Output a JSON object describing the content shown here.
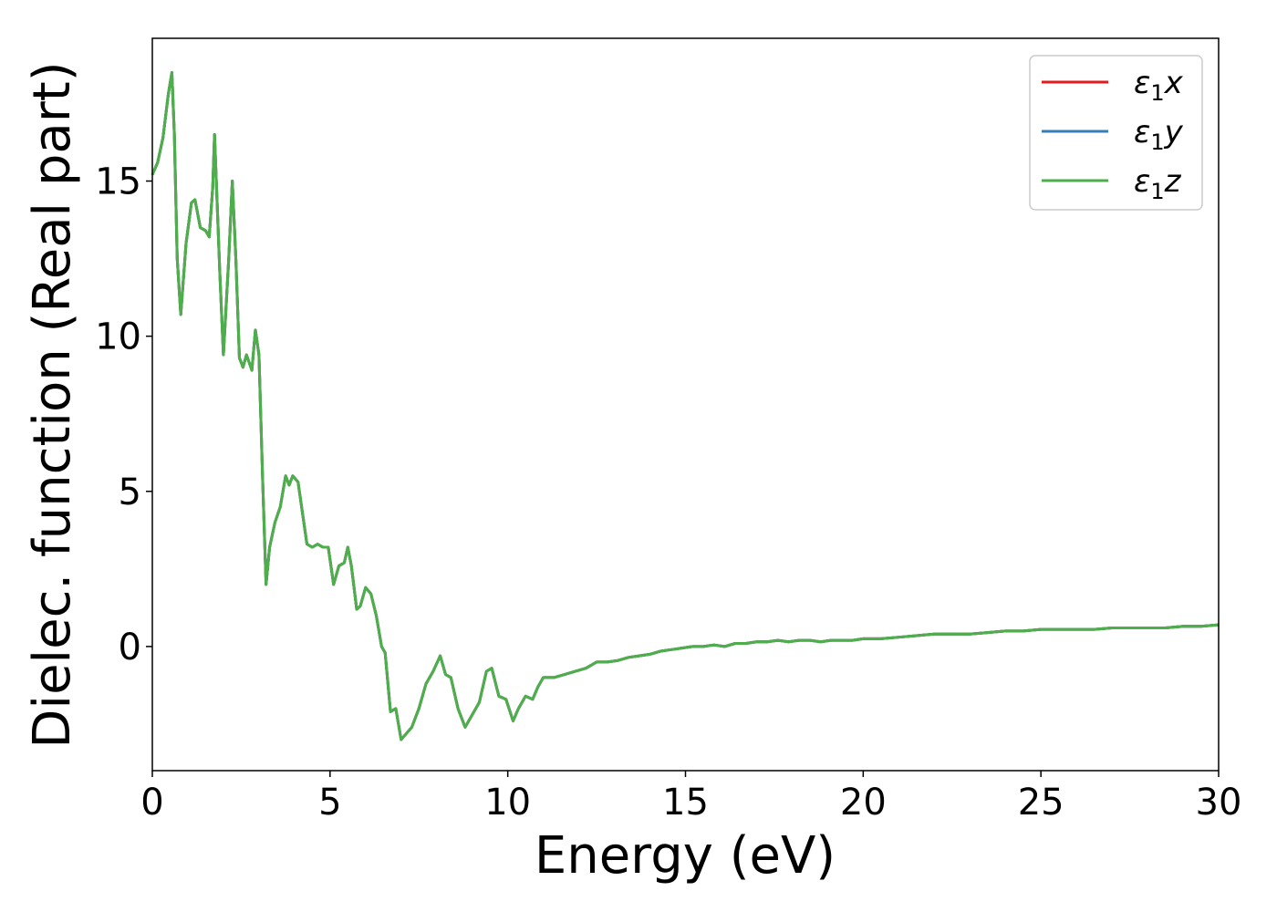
{
  "chart_data": {
    "type": "line",
    "title": "",
    "xlabel": "Energy (eV)",
    "ylabel": "Dielec. function (Real part)",
    "xlim": [
      0,
      30
    ],
    "ylim": [
      -4.0,
      19.6
    ],
    "xticks": [
      0,
      5,
      10,
      15,
      20,
      25,
      30
    ],
    "yticks": [
      0,
      5,
      10,
      15
    ],
    "xtick_labels": [
      "0",
      "5",
      "10",
      "15",
      "20",
      "25",
      "30"
    ],
    "ytick_labels": [
      "0",
      "5",
      "10",
      "15"
    ],
    "grid": false,
    "legend_position": "top-right",
    "series": [
      {
        "name": "ε₁x",
        "legend_symbol": "ε",
        "legend_sub": "1",
        "legend_var": "x",
        "color": "#e41a1c",
        "x": [
          0,
          0.15,
          0.3,
          0.45,
          0.55,
          0.62,
          0.7,
          0.8,
          0.95,
          1.1,
          1.2,
          1.35,
          1.5,
          1.6,
          1.7,
          1.75,
          1.8,
          1.9,
          2.0,
          2.15,
          2.25,
          2.35,
          2.45,
          2.55,
          2.65,
          2.8,
          2.9,
          3.0,
          3.1,
          3.2,
          3.3,
          3.45,
          3.6,
          3.75,
          3.85,
          3.95,
          4.1,
          4.2,
          4.35,
          4.5,
          4.65,
          4.8,
          4.95,
          5.1,
          5.25,
          5.4,
          5.5,
          5.6,
          5.75,
          5.85,
          6.0,
          6.15,
          6.3,
          6.45,
          6.55,
          6.7,
          6.85,
          7.0,
          7.15,
          7.3,
          7.5,
          7.7,
          7.9,
          8.1,
          8.25,
          8.4,
          8.6,
          8.8,
          9.0,
          9.2,
          9.4,
          9.55,
          9.75,
          9.95,
          10.15,
          10.3,
          10.5,
          10.7,
          10.85,
          11.0,
          11.3,
          11.6,
          11.9,
          12.2,
          12.5,
          12.8,
          13.1,
          13.4,
          13.7,
          14.0,
          14.3,
          14.6,
          14.9,
          15.2,
          15.5,
          15.8,
          16.1,
          16.4,
          16.7,
          17.0,
          17.3,
          17.6,
          17.9,
          18.2,
          18.5,
          18.8,
          19.1,
          19.4,
          19.7,
          20.0,
          20.5,
          21.0,
          21.5,
          22.0,
          22.5,
          23.0,
          23.5,
          24.0,
          24.5,
          25.0,
          25.5,
          26.0,
          26.5,
          27.0,
          27.5,
          28.0,
          28.5,
          29.0,
          29.5,
          30.0
        ],
        "y": [
          15.2,
          15.6,
          16.4,
          17.8,
          18.5,
          16.5,
          12.5,
          10.7,
          13.0,
          14.3,
          14.4,
          13.5,
          13.4,
          13.2,
          14.8,
          16.5,
          15.0,
          12.0,
          9.4,
          12.5,
          15.0,
          12.5,
          9.3,
          9.0,
          9.4,
          8.9,
          10.2,
          9.4,
          5.5,
          2.0,
          3.2,
          4.0,
          4.5,
          5.5,
          5.2,
          5.5,
          5.3,
          4.5,
          3.3,
          3.2,
          3.3,
          3.2,
          3.2,
          2.0,
          2.6,
          2.7,
          3.2,
          2.6,
          1.2,
          1.3,
          1.9,
          1.7,
          1.0,
          0.0,
          -0.2,
          -2.1,
          -2.0,
          -3.0,
          -2.8,
          -2.6,
          -2.0,
          -1.2,
          -0.8,
          -0.3,
          -0.9,
          -1.0,
          -2.0,
          -2.6,
          -2.2,
          -1.8,
          -0.8,
          -0.7,
          -1.6,
          -1.7,
          -2.4,
          -2.0,
          -1.6,
          -1.7,
          -1.3,
          -1.0,
          -1.0,
          -0.9,
          -0.8,
          -0.7,
          -0.5,
          -0.5,
          -0.45,
          -0.35,
          -0.3,
          -0.25,
          -0.15,
          -0.1,
          -0.05,
          0.0,
          0.0,
          0.05,
          0.0,
          0.1,
          0.1,
          0.15,
          0.15,
          0.2,
          0.15,
          0.2,
          0.2,
          0.15,
          0.2,
          0.2,
          0.2,
          0.25,
          0.25,
          0.3,
          0.35,
          0.4,
          0.4,
          0.4,
          0.45,
          0.5,
          0.5,
          0.55,
          0.55,
          0.55,
          0.55,
          0.6,
          0.6,
          0.6,
          0.6,
          0.65,
          0.65,
          0.7
        ]
      },
      {
        "name": "ε₁y",
        "legend_symbol": "ε",
        "legend_sub": "1",
        "legend_var": "y",
        "color": "#377eb8",
        "x": [
          0,
          0.15,
          0.3,
          0.45,
          0.55,
          0.62,
          0.7,
          0.8,
          0.95,
          1.1,
          1.2,
          1.35,
          1.5,
          1.6,
          1.7,
          1.75,
          1.8,
          1.9,
          2.0,
          2.15,
          2.25,
          2.35,
          2.45,
          2.55,
          2.65,
          2.8,
          2.9,
          3.0,
          3.1,
          3.2,
          3.3,
          3.45,
          3.6,
          3.75,
          3.85,
          3.95,
          4.1,
          4.2,
          4.35,
          4.5,
          4.65,
          4.8,
          4.95,
          5.1,
          5.25,
          5.4,
          5.5,
          5.6,
          5.75,
          5.85,
          6.0,
          6.15,
          6.3,
          6.45,
          6.55,
          6.7,
          6.85,
          7.0,
          7.15,
          7.3,
          7.5,
          7.7,
          7.9,
          8.1,
          8.25,
          8.4,
          8.6,
          8.8,
          9.0,
          9.2,
          9.4,
          9.55,
          9.75,
          9.95,
          10.15,
          10.3,
          10.5,
          10.7,
          10.85,
          11.0,
          11.3,
          11.6,
          11.9,
          12.2,
          12.5,
          12.8,
          13.1,
          13.4,
          13.7,
          14.0,
          14.3,
          14.6,
          14.9,
          15.2,
          15.5,
          15.8,
          16.1,
          16.4,
          16.7,
          17.0,
          17.3,
          17.6,
          17.9,
          18.2,
          18.5,
          18.8,
          19.1,
          19.4,
          19.7,
          20.0,
          20.5,
          21.0,
          21.5,
          22.0,
          22.5,
          23.0,
          23.5,
          24.0,
          24.5,
          25.0,
          25.5,
          26.0,
          26.5,
          27.0,
          27.5,
          28.0,
          28.5,
          29.0,
          29.5,
          30.0
        ],
        "y": [
          15.2,
          15.6,
          16.4,
          17.8,
          18.5,
          16.5,
          12.5,
          10.7,
          13.0,
          14.3,
          14.4,
          13.5,
          13.4,
          13.2,
          14.8,
          16.5,
          15.0,
          12.0,
          9.4,
          12.5,
          15.0,
          12.5,
          9.3,
          9.0,
          9.4,
          8.9,
          10.2,
          9.4,
          5.5,
          2.0,
          3.2,
          4.0,
          4.5,
          5.5,
          5.2,
          5.5,
          5.3,
          4.5,
          3.3,
          3.2,
          3.3,
          3.2,
          3.2,
          2.0,
          2.6,
          2.7,
          3.2,
          2.6,
          1.2,
          1.3,
          1.9,
          1.7,
          1.0,
          0.0,
          -0.2,
          -2.1,
          -2.0,
          -3.0,
          -2.8,
          -2.6,
          -2.0,
          -1.2,
          -0.8,
          -0.3,
          -0.9,
          -1.0,
          -2.0,
          -2.6,
          -2.2,
          -1.8,
          -0.8,
          -0.7,
          -1.6,
          -1.7,
          -2.4,
          -2.0,
          -1.6,
          -1.7,
          -1.3,
          -1.0,
          -1.0,
          -0.9,
          -0.8,
          -0.7,
          -0.5,
          -0.5,
          -0.45,
          -0.35,
          -0.3,
          -0.25,
          -0.15,
          -0.1,
          -0.05,
          0.0,
          0.0,
          0.05,
          0.0,
          0.1,
          0.1,
          0.15,
          0.15,
          0.2,
          0.15,
          0.2,
          0.2,
          0.15,
          0.2,
          0.2,
          0.2,
          0.25,
          0.25,
          0.3,
          0.35,
          0.4,
          0.4,
          0.4,
          0.45,
          0.5,
          0.5,
          0.55,
          0.55,
          0.55,
          0.55,
          0.6,
          0.6,
          0.6,
          0.6,
          0.65,
          0.65,
          0.7
        ]
      },
      {
        "name": "ε₁z",
        "legend_symbol": "ε",
        "legend_sub": "1",
        "legend_var": "z",
        "color": "#4daf4a",
        "x": [
          0,
          0.15,
          0.3,
          0.45,
          0.55,
          0.62,
          0.7,
          0.8,
          0.95,
          1.1,
          1.2,
          1.35,
          1.5,
          1.6,
          1.7,
          1.75,
          1.8,
          1.9,
          2.0,
          2.15,
          2.25,
          2.35,
          2.45,
          2.55,
          2.65,
          2.8,
          2.9,
          3.0,
          3.1,
          3.2,
          3.3,
          3.45,
          3.6,
          3.75,
          3.85,
          3.95,
          4.1,
          4.2,
          4.35,
          4.5,
          4.65,
          4.8,
          4.95,
          5.1,
          5.25,
          5.4,
          5.5,
          5.6,
          5.75,
          5.85,
          6.0,
          6.15,
          6.3,
          6.45,
          6.55,
          6.7,
          6.85,
          7.0,
          7.15,
          7.3,
          7.5,
          7.7,
          7.9,
          8.1,
          8.25,
          8.4,
          8.6,
          8.8,
          9.0,
          9.2,
          9.4,
          9.55,
          9.75,
          9.95,
          10.15,
          10.3,
          10.5,
          10.7,
          10.85,
          11.0,
          11.3,
          11.6,
          11.9,
          12.2,
          12.5,
          12.8,
          13.1,
          13.4,
          13.7,
          14.0,
          14.3,
          14.6,
          14.9,
          15.2,
          15.5,
          15.8,
          16.1,
          16.4,
          16.7,
          17.0,
          17.3,
          17.6,
          17.9,
          18.2,
          18.5,
          18.8,
          19.1,
          19.4,
          19.7,
          20.0,
          20.5,
          21.0,
          21.5,
          22.0,
          22.5,
          23.0,
          23.5,
          24.0,
          24.5,
          25.0,
          25.5,
          26.0,
          26.5,
          27.0,
          27.5,
          28.0,
          28.5,
          29.0,
          29.5,
          30.0
        ],
        "y": [
          15.2,
          15.6,
          16.4,
          17.8,
          18.5,
          16.5,
          12.5,
          10.7,
          13.0,
          14.3,
          14.4,
          13.5,
          13.4,
          13.2,
          14.8,
          16.5,
          15.0,
          12.0,
          9.4,
          12.5,
          15.0,
          12.5,
          9.3,
          9.0,
          9.4,
          8.9,
          10.2,
          9.4,
          5.5,
          2.0,
          3.2,
          4.0,
          4.5,
          5.5,
          5.2,
          5.5,
          5.3,
          4.5,
          3.3,
          3.2,
          3.3,
          3.2,
          3.2,
          2.0,
          2.6,
          2.7,
          3.2,
          2.6,
          1.2,
          1.3,
          1.9,
          1.7,
          1.0,
          0.0,
          -0.2,
          -2.1,
          -2.0,
          -3.0,
          -2.8,
          -2.6,
          -2.0,
          -1.2,
          -0.8,
          -0.3,
          -0.9,
          -1.0,
          -2.0,
          -2.6,
          -2.2,
          -1.8,
          -0.8,
          -0.7,
          -1.6,
          -1.7,
          -2.4,
          -2.0,
          -1.6,
          -1.7,
          -1.3,
          -1.0,
          -1.0,
          -0.9,
          -0.8,
          -0.7,
          -0.5,
          -0.5,
          -0.45,
          -0.35,
          -0.3,
          -0.25,
          -0.15,
          -0.1,
          -0.05,
          0.0,
          0.0,
          0.05,
          0.0,
          0.1,
          0.1,
          0.15,
          0.15,
          0.2,
          0.15,
          0.2,
          0.2,
          0.15,
          0.2,
          0.2,
          0.2,
          0.25,
          0.25,
          0.3,
          0.35,
          0.4,
          0.4,
          0.4,
          0.45,
          0.5,
          0.5,
          0.55,
          0.55,
          0.55,
          0.55,
          0.6,
          0.6,
          0.6,
          0.6,
          0.65,
          0.65,
          0.7
        ]
      }
    ]
  }
}
